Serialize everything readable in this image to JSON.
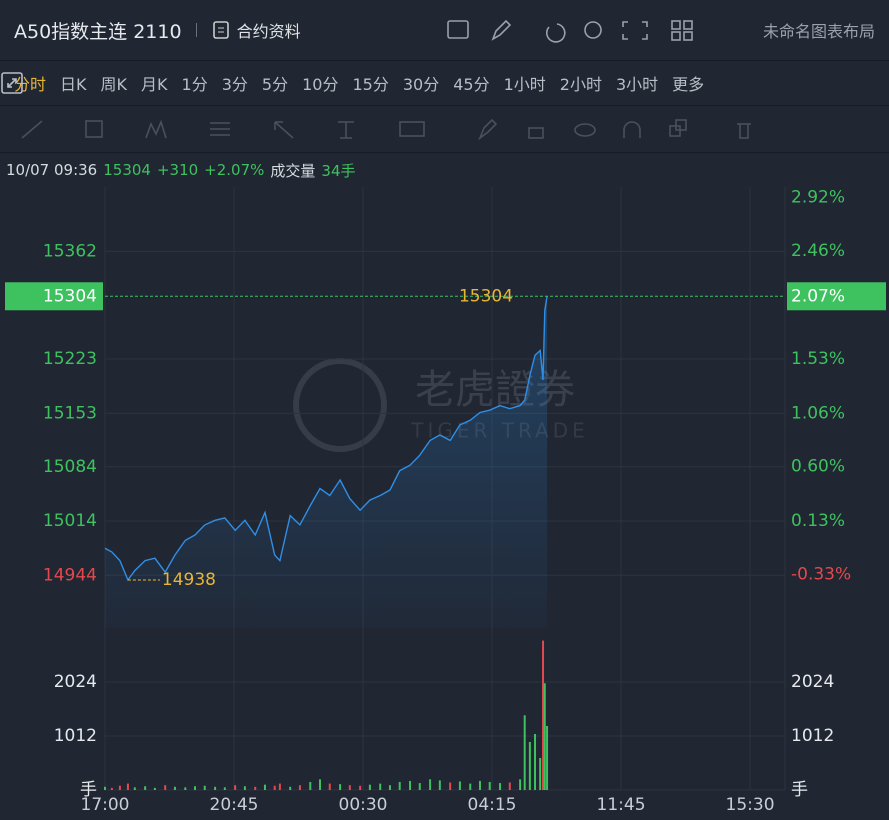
{
  "header": {
    "title": "A50指数主连 2110",
    "info": "合约资料",
    "layout": "未命名图表布局"
  },
  "periods": {
    "items": [
      "分时",
      "日K",
      "周K",
      "月K",
      "1分",
      "3分",
      "5分",
      "10分",
      "15分",
      "30分",
      "45分",
      "1小时",
      "2小时",
      "3小时",
      "更多"
    ],
    "active": 0,
    "active_color": "#e8b632"
  },
  "quote": {
    "datetime": "10/07 09:36",
    "price": 15304,
    "change": "+310",
    "change_pct": "+2.07%",
    "volume_label": "成交量",
    "volume": "34手",
    "price_tag_pct": "2.07%"
  },
  "watermark": {
    "cn": "老虎證券",
    "en": "TIGER TRADE"
  },
  "chart_data": {
    "type": "line",
    "color": "#2f8fe6",
    "up_color": "#3ec25f",
    "down_color": "#e5484d",
    "grid": true,
    "x": [
      0,
      12,
      26,
      40,
      52,
      70,
      87,
      105,
      122,
      140,
      157,
      174,
      192,
      209,
      227,
      244,
      262,
      279,
      296,
      305,
      323,
      340,
      358,
      375,
      392,
      410,
      427,
      445,
      462,
      480,
      497,
      514,
      532,
      549,
      567,
      584,
      602,
      619,
      637,
      654,
      671,
      689,
      706,
      724,
      732,
      741,
      750,
      759,
      764,
      767,
      771
    ],
    "values": [
      14979,
      14974,
      14963,
      14938,
      14950,
      14963,
      14966,
      14948,
      14970,
      14989,
      14996,
      15009,
      15015,
      15018,
      15002,
      15015,
      14996,
      15025,
      14970,
      14963,
      15021,
      15009,
      15034,
      15056,
      15047,
      15067,
      15043,
      15028,
      15041,
      15047,
      15054,
      15079,
      15086,
      15099,
      15118,
      15125,
      15118,
      15138,
      15144,
      15154,
      15157,
      15163,
      15159,
      15163,
      15170,
      15202,
      15228,
      15234,
      15196,
      15286,
      15304
    ],
    "xlim": [
      0,
      1186
    ],
    "xticks": [
      {
        "value": 0,
        "label": "17:00"
      },
      {
        "value": 225,
        "label": "20:45"
      },
      {
        "value": 450,
        "label": "00:30"
      },
      {
        "value": 675,
        "label": "04:15"
      },
      {
        "value": 900,
        "label": "11:45"
      },
      {
        "value": 1125,
        "label": "15:30"
      }
    ],
    "ylim": [
      14876,
      15445
    ],
    "yticks": [
      14944,
      15014,
      15084,
      15153,
      15223,
      15362
    ],
    "y2lim": [
      -0.79,
      3.01
    ],
    "y2ticks": [
      {
        "value": -0.33,
        "label": "-0.33%"
      },
      {
        "value": 0.13,
        "label": "0.13%"
      },
      {
        "value": 0.6,
        "label": "0.60%"
      },
      {
        "value": 1.06,
        "label": "1.06%"
      },
      {
        "value": 1.53,
        "label": "1.53%"
      },
      {
        "value": 2.46,
        "label": "2.46%"
      },
      {
        "value": 2.92,
        "label": "2.92%"
      }
    ],
    "annotations": [
      {
        "x": 771,
        "y": 15304
      },
      {
        "x": 40,
        "y": 14938
      }
    ],
    "volume": {
      "values": [
        60,
        40,
        80,
        120,
        50,
        70,
        40,
        90,
        60,
        50,
        70,
        80,
        60,
        50,
        90,
        70,
        60,
        100,
        80,
        120,
        60,
        90,
        150,
        200,
        120,
        110,
        90,
        80,
        100,
        120,
        90,
        150,
        170,
        130,
        200,
        180,
        140,
        160,
        120,
        170,
        150,
        130,
        140,
        200,
        1400,
        900,
        1050,
        600,
        2800,
        2000,
        1200
      ],
      "ylim": [
        0,
        2811
      ],
      "yticks": [
        {
          "value": 0,
          "label": "手"
        },
        1012,
        2024
      ]
    }
  }
}
